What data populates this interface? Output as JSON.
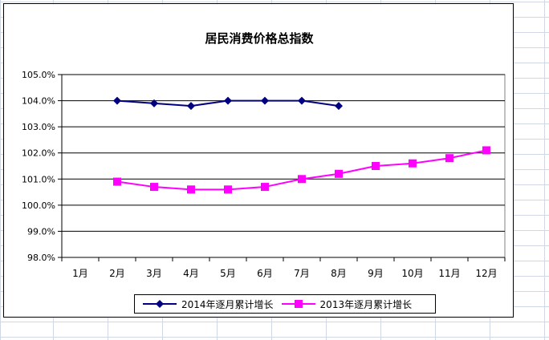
{
  "colors": {
    "series_2014": "#000080",
    "series_2013": "#ff00ff",
    "sheet_grid": "#d0d7e5"
  },
  "chart_data": {
    "type": "line",
    "title": "居民消费价格总指数",
    "xlabel": "",
    "ylabel": "",
    "categories": [
      "1月",
      "2月",
      "3月",
      "4月",
      "5月",
      "6月",
      "7月",
      "8月",
      "9月",
      "10月",
      "11月",
      "12月"
    ],
    "yticks": [
      "98.0%",
      "99.0%",
      "100.0%",
      "101.0%",
      "102.0%",
      "103.0%",
      "104.0%",
      "105.0%"
    ],
    "ylim": [
      98.0,
      105.0
    ],
    "grid": true,
    "legend": "bottom",
    "series": [
      {
        "name": "2014年逐月累计增长",
        "marker": "diamond",
        "color": "#000080",
        "values": [
          null,
          104.0,
          103.9,
          103.8,
          104.0,
          104.0,
          104.0,
          103.8,
          null,
          null,
          null,
          null
        ]
      },
      {
        "name": "2013年逐月累计增长",
        "marker": "square",
        "color": "#ff00ff",
        "values": [
          null,
          100.9,
          100.7,
          100.6,
          100.6,
          100.7,
          101.0,
          101.2,
          101.5,
          101.6,
          101.8,
          102.1
        ]
      }
    ]
  }
}
